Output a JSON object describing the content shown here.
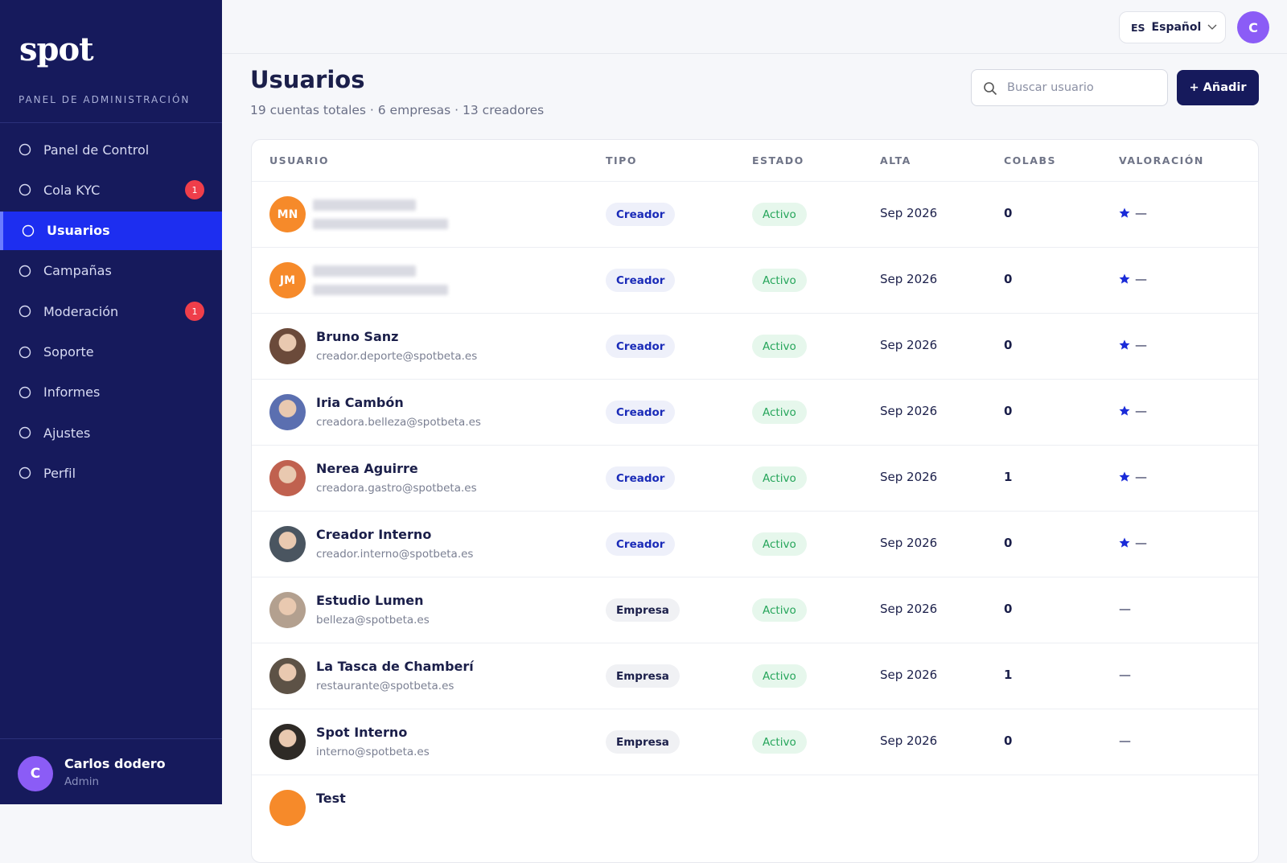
{
  "sidebar": {
    "logo": "spot",
    "subtitle": "PANEL DE ADMINISTRACIÓN",
    "nav": [
      {
        "label": "Panel de Control"
      },
      {
        "label": "Cola KYC",
        "badge": "1"
      },
      {
        "label": "Usuarios",
        "active": true
      },
      {
        "label": "Campañas"
      },
      {
        "label": "Moderación",
        "badge": "1"
      },
      {
        "label": "Soporte"
      },
      {
        "label": "Informes"
      },
      {
        "label": "Ajustes"
      },
      {
        "label": "Perfil"
      }
    ],
    "user": {
      "initial": "C",
      "name": "Carlos dodero",
      "role": "Admin"
    }
  },
  "topbar": {
    "lang_code": "ES",
    "lang": "Español",
    "avatar": "C"
  },
  "header": {
    "title": "Usuarios",
    "subtitle": "19 cuentas totales · 6 empresas · 13 creadores",
    "search_placeholder": "Buscar usuario",
    "add_button": "+ Añadir"
  },
  "table": {
    "columns": [
      "USUARIO",
      "TIPO",
      "ESTADO",
      "ALTA",
      "COLABS",
      "VALORACIÓN"
    ],
    "rows": [
      {
        "avatar": "MN",
        "type": "Creador",
        "status": "Activo",
        "joined": "Sep 2026",
        "colabs": 0,
        "star": true,
        "rating": "—"
      },
      {
        "avatar": "JM",
        "type": "Creador",
        "status": "Activo",
        "joined": "Sep 2026",
        "colabs": 0,
        "star": true,
        "rating": "—"
      },
      {
        "name": "Bruno Sanz",
        "email": "creador.deporte@spotbeta.es",
        "type": "Creador",
        "status": "Activo",
        "joined": "Sep 2026",
        "colabs": 0,
        "star": true,
        "rating": "—"
      },
      {
        "name": "Iria Cambón",
        "email": "creadora.belleza@spotbeta.es",
        "type": "Creador",
        "status": "Activo",
        "joined": "Sep 2026",
        "colabs": 0,
        "star": true,
        "rating": "—"
      },
      {
        "name": "Nerea Aguirre",
        "email": "creadora.gastro@spotbeta.es",
        "type": "Creador",
        "status": "Activo",
        "joined": "Sep 2026",
        "colabs": 1,
        "star": true,
        "rating": "—"
      },
      {
        "name": "Creador Interno",
        "email": "creador.interno@spotbeta.es",
        "type": "Creador",
        "status": "Activo",
        "joined": "Sep 2026",
        "colabs": 0,
        "star": true,
        "rating": "—"
      },
      {
        "name": "Estudio Lumen",
        "email": "belleza@spotbeta.es",
        "type": "Empresa",
        "status": "Activo",
        "joined": "Sep 2026",
        "colabs": 0,
        "rating": "—"
      },
      {
        "name": "La Tasca de Chamberí",
        "email": "restaurante@spotbeta.es",
        "type": "Empresa",
        "status": "Activo",
        "joined": "Sep 2026",
        "colabs": 1,
        "rating": "—"
      },
      {
        "name": "Spot Interno",
        "email": "interno@spotbeta.es",
        "type": "Empresa",
        "status": "Activo",
        "joined": "Sep 2026",
        "colabs": 0,
        "rating": "—"
      },
      {
        "name": "Test"
      }
    ]
  }
}
